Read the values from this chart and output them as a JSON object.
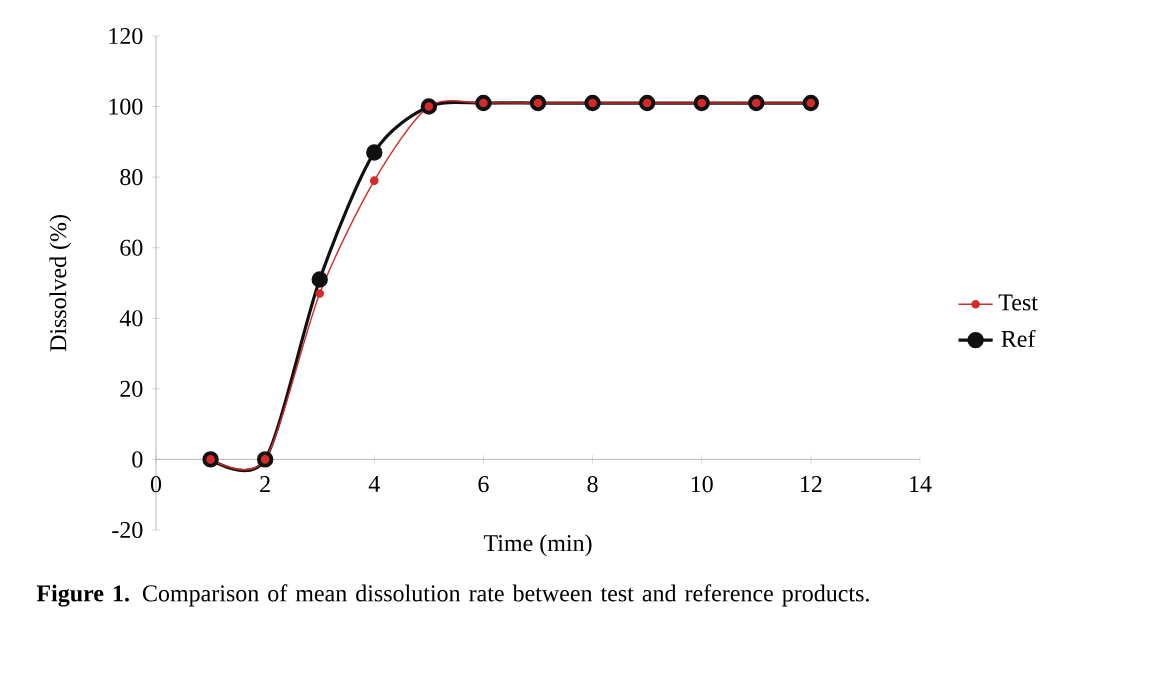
{
  "chart_data": {
    "type": "line",
    "xlabel": "Time (min)",
    "ylabel": "Dissolved (%)",
    "x": [
      1,
      2,
      3,
      4,
      5,
      6,
      7,
      8,
      9,
      10,
      11,
      12
    ],
    "series": [
      {
        "name": "Test",
        "color": "#d42a2a",
        "values": [
          0,
          0,
          47,
          79,
          100,
          101,
          101,
          101,
          101,
          101,
          101,
          101
        ]
      },
      {
        "name": "Ref",
        "color": "#111111",
        "values": [
          0,
          0,
          51,
          87,
          100,
          101,
          101,
          101,
          101,
          101,
          101,
          101
        ]
      }
    ],
    "xlim": [
      0,
      14
    ],
    "xticks": [
      0,
      2,
      4,
      6,
      8,
      10,
      12,
      14
    ],
    "ylim": [
      -20,
      120
    ],
    "yticks": [
      -20,
      0,
      20,
      40,
      60,
      80,
      100,
      120
    ],
    "legend": "right",
    "grid": false,
    "marker": "circle",
    "line_style": "solid",
    "annotations": [
      "**Figure 1.** Comparison of mean dissolution rate between test and reference products."
    ]
  }
}
